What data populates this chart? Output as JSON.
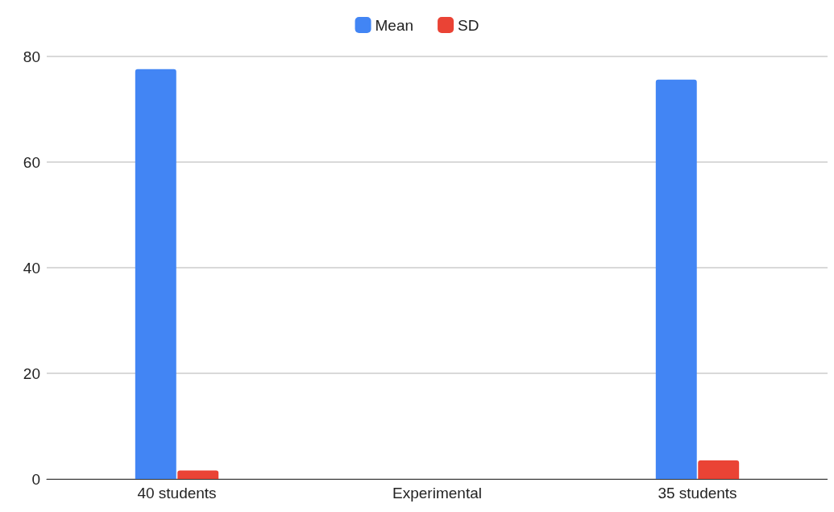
{
  "chart_data": {
    "type": "bar",
    "categories": [
      "40 students",
      "Experimental",
      "35 students"
    ],
    "series": [
      {
        "name": "Mean",
        "color": "#4285f4",
        "values": [
          77.6,
          null,
          75.6
        ]
      },
      {
        "name": "SD",
        "color": "#ea4335",
        "values": [
          1.6,
          null,
          3.5
        ]
      }
    ],
    "ylim": [
      0,
      80
    ],
    "yticks": [
      0,
      20,
      40,
      60,
      80
    ],
    "grid": "y",
    "legend": "top"
  }
}
